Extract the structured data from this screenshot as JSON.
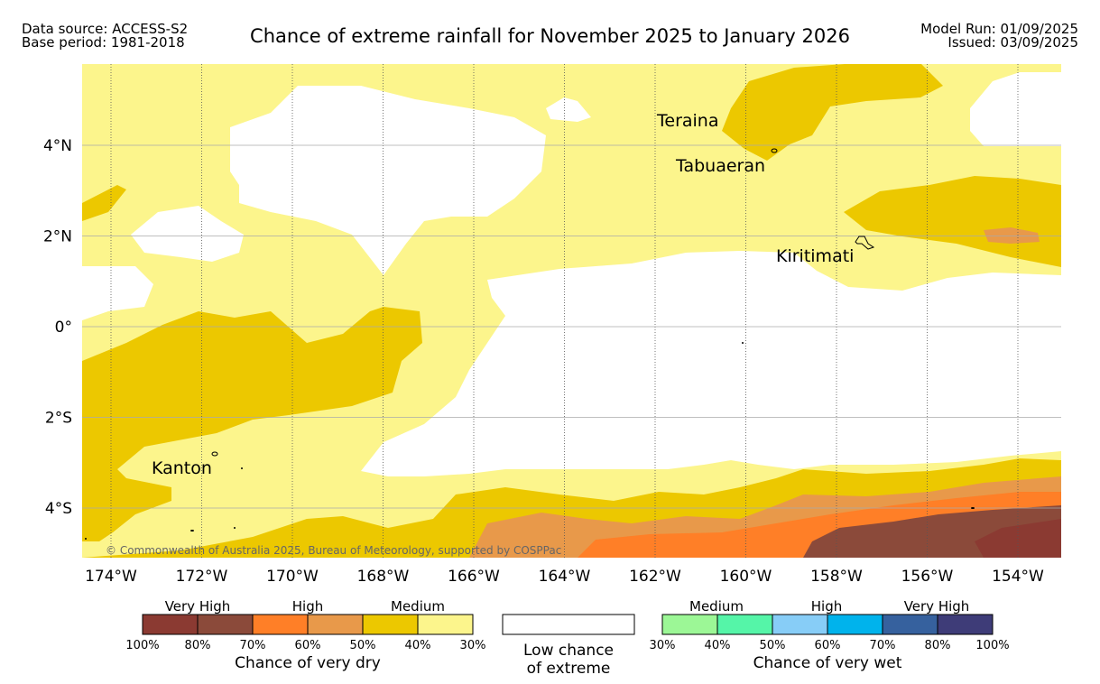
{
  "header": {
    "data_source": "Data source: ACCESS-S2",
    "base_period": "Base period: 1981-2018",
    "title": "Chance of extreme rainfall for November 2025 to January 2026",
    "model_run": "Model Run: 01/09/2025",
    "issued": "Issued: 03/09/2025"
  },
  "map": {
    "copyright": "© Commonwealth of Australia 2025, Bureau of Meteorology, supported by COSPPac",
    "lon_labels": [
      "174°W",
      "172°W",
      "170°W",
      "168°W",
      "166°W",
      "164°W",
      "162°W",
      "160°W",
      "158°W",
      "156°W",
      "154°W"
    ],
    "lat_labels": [
      "4°N",
      "2°N",
      "0°",
      "2°S",
      "4°S"
    ],
    "places": [
      "Teraina",
      "Tabuaeran",
      "Kiritimati",
      "Kanton"
    ]
  },
  "legend": {
    "dry": {
      "categories": [
        "Very High",
        "High",
        "Medium"
      ],
      "colors": [
        "#8b3a32",
        "#8b4a3a",
        "#ff7f27",
        "#e8994a",
        "#ecc800",
        "#fcf58c"
      ],
      "ticks": [
        "100%",
        "80%",
        "70%",
        "60%",
        "50%",
        "40%",
        "30%"
      ],
      "caption": "Chance of very dry"
    },
    "low": {
      "caption_line1": "Low chance",
      "caption_line2": "of extreme"
    },
    "wet": {
      "categories": [
        "Medium",
        "High",
        "Very High"
      ],
      "colors": [
        "#9cf796",
        "#55f5a8",
        "#87cdf7",
        "#00b3ec",
        "#36619e",
        "#3e3c78"
      ],
      "ticks": [
        "30%",
        "40%",
        "50%",
        "60%",
        "70%",
        "80%",
        "100%"
      ],
      "caption": "Chance of very wet"
    }
  }
}
